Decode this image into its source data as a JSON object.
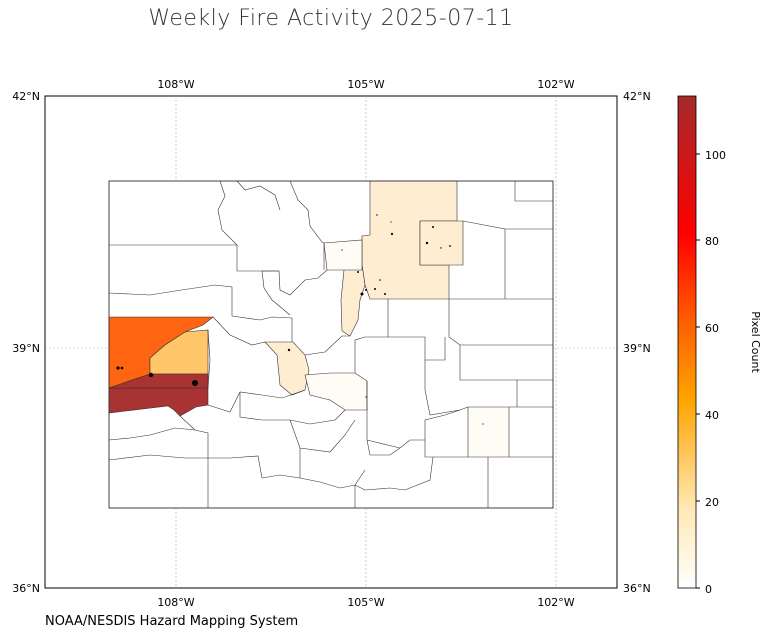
{
  "title": "Weekly Fire Activity 2025-07-11",
  "credit": "NOAA/NESDIS Hazard Mapping System",
  "map": {
    "lon_ticks": [
      "108°W",
      "105°W",
      "102°W"
    ],
    "lat_ticks": [
      "42°N",
      "39°N",
      "36°N"
    ],
    "extent": {
      "lon": [
        -110,
        -101
      ],
      "lat": [
        36,
        42
      ]
    },
    "gridlines": true
  },
  "colorbar": {
    "label": "Pixel Count",
    "ticks": [
      "0",
      "20",
      "40",
      "60",
      "80",
      "100"
    ],
    "range": [
      0,
      112
    ],
    "colors": [
      "#ffffff",
      "#ffe9b5",
      "#ffc65e",
      "#ffa500",
      "#ff5a00",
      "#ff0000",
      "#a52a2a"
    ]
  },
  "chart_data": {
    "type": "choropleth",
    "value_label": "Pixel Count",
    "range": [
      0,
      112
    ],
    "highlighted_counties": [
      {
        "value": 112,
        "color": "#a93232"
      },
      {
        "value": 58,
        "color": "#ff6510"
      },
      {
        "value": 17,
        "color": "#ffc66a"
      },
      {
        "value": 4,
        "color": "#ffedd2"
      },
      {
        "value": 2,
        "color": "#fff3e2"
      },
      {
        "value": 1,
        "color": "#fffbf5"
      }
    ],
    "fire_detections": "black dots"
  }
}
